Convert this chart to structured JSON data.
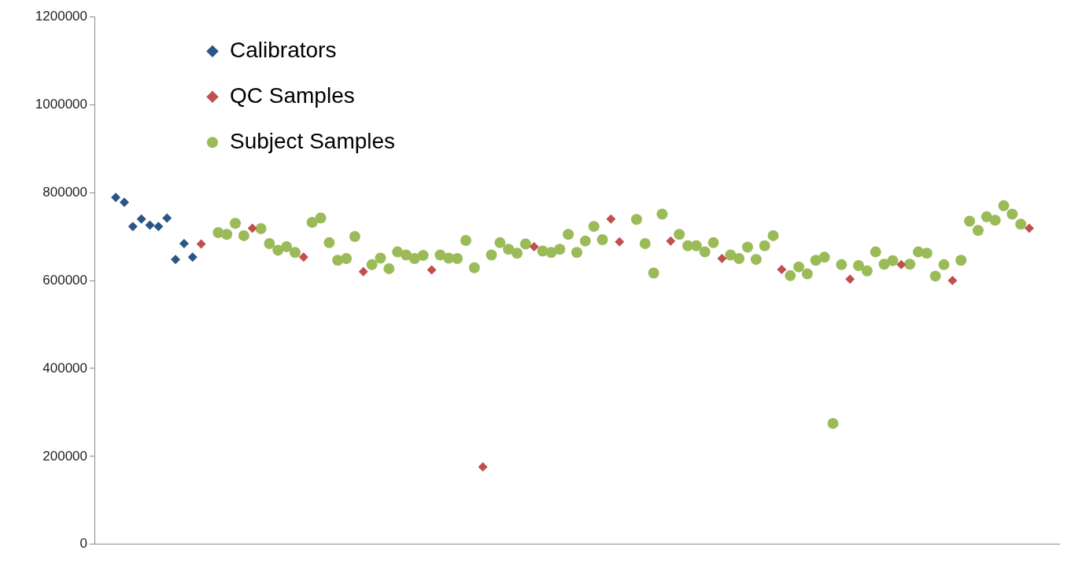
{
  "chart_data": {
    "type": "scatter",
    "ylim": [
      0,
      1200000
    ],
    "yticks": [
      0,
      200000,
      400000,
      600000,
      800000,
      1000000,
      1200000
    ],
    "grid": false,
    "legend": "top left",
    "tick_labels": "y",
    "categories": [
      null,
      null,
      null,
      null,
      null,
      null,
      null,
      null,
      null,
      null,
      null,
      null,
      null,
      null,
      null,
      null,
      null,
      null,
      null,
      null,
      null,
      null,
      null,
      null,
      null,
      null,
      null,
      null,
      null,
      null,
      null,
      null,
      null,
      null,
      null,
      null,
      null,
      null,
      null,
      null,
      null,
      null,
      null,
      null,
      null,
      null,
      null,
      null,
      null,
      null,
      null,
      null,
      null,
      null,
      null,
      null,
      null,
      null,
      null,
      null,
      null,
      null,
      null,
      null,
      null,
      null,
      null,
      null,
      null,
      null,
      null,
      null,
      null,
      null,
      null,
      null,
      null,
      null,
      null,
      null,
      null,
      null,
      null,
      null,
      null,
      null,
      null,
      null,
      null,
      null,
      null,
      null,
      null,
      null,
      null,
      null,
      null,
      null,
      null,
      null,
      null,
      null,
      null,
      null,
      null,
      null,
      null,
      null,
      null,
      null,
      null,
      null,
      null
    ],
    "series": [
      {
        "name": "Calibrators",
        "color": "#2a5586",
        "marker": "diamond",
        "values": [
          null,
          null,
          789000,
          778000,
          723000,
          740000,
          726000,
          723000,
          742000,
          648000,
          684000,
          653000,
          null,
          null,
          null,
          null,
          null,
          null,
          null,
          null,
          null,
          null,
          null,
          null,
          null,
          null,
          null,
          null,
          null,
          null,
          null,
          null,
          null,
          null,
          null,
          null,
          null,
          null,
          null,
          null,
          null,
          null,
          null,
          null,
          null,
          null,
          null,
          null,
          null,
          null,
          null,
          null,
          null,
          null,
          null,
          null,
          null,
          null,
          null,
          null,
          null,
          null,
          null,
          null,
          null,
          null,
          null,
          null,
          null,
          null,
          null,
          null,
          null,
          null,
          null,
          null,
          null,
          null,
          null,
          null,
          null,
          null,
          null,
          null,
          null,
          null,
          null,
          null,
          null,
          null,
          null,
          null,
          null,
          null,
          null,
          null,
          null,
          null,
          null,
          null,
          null,
          null,
          null,
          null,
          null,
          null,
          null,
          null,
          null,
          null,
          null,
          null,
          null
        ]
      },
      {
        "name": "QC Samples",
        "color": "#c0504d",
        "marker": "diamond",
        "values": [
          null,
          null,
          null,
          null,
          null,
          null,
          null,
          null,
          null,
          null,
          null,
          null,
          683000,
          null,
          null,
          null,
          null,
          null,
          719000,
          null,
          null,
          null,
          null,
          null,
          653000,
          null,
          null,
          null,
          null,
          null,
          null,
          620000,
          null,
          null,
          null,
          null,
          null,
          null,
          null,
          624000,
          null,
          null,
          null,
          null,
          null,
          176000,
          null,
          null,
          null,
          null,
          null,
          677000,
          null,
          null,
          null,
          null,
          null,
          null,
          null,
          null,
          740000,
          688000,
          null,
          null,
          null,
          null,
          null,
          690000,
          null,
          null,
          null,
          null,
          null,
          650000,
          null,
          null,
          null,
          null,
          null,
          null,
          625000,
          null,
          null,
          null,
          null,
          null,
          null,
          null,
          603000,
          null,
          null,
          null,
          null,
          null,
          636000,
          null,
          null,
          null,
          null,
          null,
          600000,
          null,
          null,
          null,
          null,
          null,
          null,
          null,
          null,
          719000,
          null,
          null,
          null
        ]
      },
      {
        "name": "Subject Samples",
        "color": "#9bbb59",
        "marker": "circle",
        "values": [
          null,
          null,
          null,
          null,
          null,
          null,
          null,
          null,
          null,
          null,
          null,
          null,
          null,
          null,
          709000,
          705000,
          730000,
          702000,
          null,
          718000,
          684000,
          669000,
          677000,
          664000,
          null,
          732000,
          742000,
          686000,
          646000,
          650000,
          700000,
          null,
          636000,
          651000,
          627000,
          665000,
          658000,
          650000,
          657000,
          null,
          658000,
          651000,
          650000,
          691000,
          629000,
          null,
          658000,
          686000,
          671000,
          662000,
          683000,
          null,
          667000,
          664000,
          671000,
          705000,
          664000,
          690000,
          723000,
          693000,
          null,
          null,
          null,
          739000,
          684000,
          617000,
          751000,
          null,
          705000,
          679000,
          679000,
          665000,
          686000,
          null,
          658000,
          650000,
          676000,
          648000,
          679000,
          702000,
          null,
          611000,
          631000,
          615000,
          646000,
          653000,
          275000,
          636000,
          null,
          634000,
          622000,
          665000,
          637000,
          645000,
          null,
          637000,
          665000,
          662000,
          610000,
          636000,
          null,
          646000,
          735000,
          714000,
          745000,
          737000,
          770000,
          751000,
          728000,
          null,
          null,
          null,
          null
        ]
      }
    ]
  }
}
